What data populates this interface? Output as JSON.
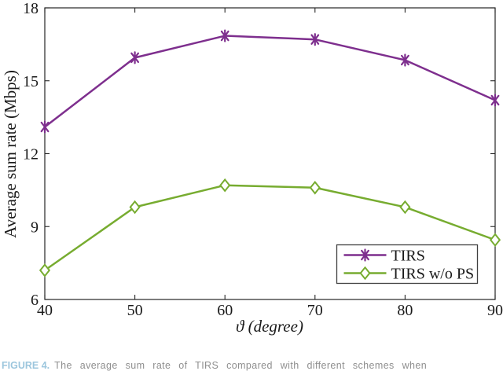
{
  "chart_data": {
    "type": "line",
    "title": "",
    "xlabel": "ϑ (degree)",
    "ylabel": "Average sum rate (Mbps)",
    "x": [
      40,
      50,
      60,
      70,
      80,
      90
    ],
    "xlim": [
      40,
      90
    ],
    "ylim": [
      6,
      18
    ],
    "xticks": [
      40,
      50,
      60,
      70,
      80,
      90
    ],
    "yticks": [
      6,
      9,
      12,
      15,
      18
    ],
    "grid": false,
    "box": true,
    "legend_position": "inside-lower-right",
    "axis_color": "#262626",
    "series": [
      {
        "name": "TIRS",
        "color": "#7E2F8E",
        "marker": "asterisk",
        "line_width": 2.5,
        "values": [
          13.1,
          15.95,
          16.85,
          16.7,
          15.85,
          14.2
        ]
      },
      {
        "name": "TIRS w/o PS",
        "color": "#77AC30",
        "marker": "diamond",
        "line_width": 2.5,
        "values": [
          7.2,
          9.8,
          10.7,
          10.6,
          9.8,
          8.45
        ]
      }
    ]
  },
  "caption": {
    "label": "FIGURE 4.",
    "text": "The average sum rate of TIRS compared with different schemes when"
  }
}
